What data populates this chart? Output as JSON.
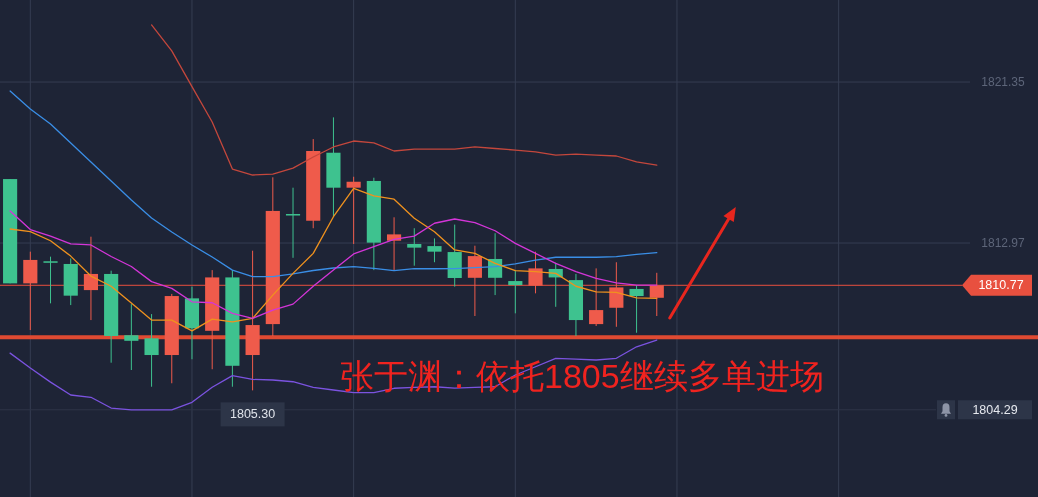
{
  "chart_data": {
    "type": "candlestick",
    "categories": [
      null,
      null,
      null,
      null,
      null,
      null,
      null,
      null,
      null,
      null,
      null,
      null,
      null,
      null,
      null,
      null,
      null,
      null,
      null,
      null,
      null,
      null,
      null,
      null,
      null,
      null,
      null,
      null,
      null,
      null,
      null,
      null,
      null
    ],
    "ohlc": [
      [
        1816.3,
        1816.3,
        1810.87,
        1810.87
      ],
      [
        1810.87,
        1812.52,
        1808.44,
        1812.09
      ],
      [
        1812.02,
        1812.26,
        1809.83,
        1811.98
      ],
      [
        1811.88,
        1812.17,
        1809.74,
        1810.23
      ],
      [
        1810.52,
        1813.3,
        1808.96,
        1811.36
      ],
      [
        1811.36,
        1811.53,
        1806.74,
        1808.13
      ],
      [
        1808.17,
        1809.79,
        1806.36,
        1807.88
      ],
      [
        1808.01,
        1809.27,
        1805.49,
        1807.14
      ],
      [
        1807.14,
        1810.32,
        1805.67,
        1810.21
      ],
      [
        1810.09,
        1810.7,
        1806.92,
        1808.53
      ],
      [
        1808.4,
        1811.56,
        1806.4,
        1811.18
      ],
      [
        1811.18,
        1811.56,
        1805.49,
        1806.58
      ],
      [
        1807.14,
        1812.57,
        1805.3,
        1808.7
      ],
      [
        1808.75,
        1816.39,
        1808.13,
        1814.64
      ],
      [
        1814.48,
        1815.85,
        1812.2,
        1814.44
      ],
      [
        1814.13,
        1818.38,
        1813.74,
        1817.76
      ],
      [
        1817.67,
        1819.51,
        1814.34,
        1815.85
      ],
      [
        1815.85,
        1816.42,
        1812.92,
        1816.16
      ],
      [
        1816.2,
        1816.37,
        1811.56,
        1812.99
      ],
      [
        1813.09,
        1814.31,
        1811.56,
        1813.42
      ],
      [
        1812.92,
        1813.74,
        1811.79,
        1812.73
      ],
      [
        1812.81,
        1813.21,
        1811.97,
        1812.52
      ],
      [
        1812.5,
        1813.93,
        1810.7,
        1811.15
      ],
      [
        1811.16,
        1812.83,
        1809.17,
        1812.29
      ],
      [
        1812.14,
        1813.48,
        1810.26,
        1811.16
      ],
      [
        1810.99,
        1811.56,
        1809.31,
        1810.78
      ],
      [
        1810.75,
        1812.52,
        1810.35,
        1811.65
      ],
      [
        1811.62,
        1811.94,
        1809.65,
        1811.18
      ],
      [
        1811.04,
        1811.36,
        1808.13,
        1808.96
      ],
      [
        1808.75,
        1811.65,
        1808.65,
        1809.48
      ],
      [
        1809.6,
        1811.97,
        1808.61,
        1810.66
      ],
      [
        1810.58,
        1810.78,
        1808.3,
        1810.21
      ],
      [
        1810.12,
        1811.42,
        1809.17,
        1810.77
      ]
    ],
    "colors": [
      "#3ec28f",
      "#ef5b4b",
      "#3ec28f",
      "#3ec28f",
      "#ef5b4b",
      "#3ec28f",
      "#3ec28f",
      "#3ec28f",
      "#ef5b4b",
      "#3ec28f",
      "#ef5b4b",
      "#3ec28f",
      "#ef5b4b",
      "#ef5b4b",
      "#3ec28f",
      "#ef5b4b",
      "#3ec28f",
      "#ef5b4b",
      "#3ec28f",
      "#ef5b4b",
      "#3ec28f",
      "#3ec28f",
      "#3ec28f",
      "#ef5b4b",
      "#3ec28f",
      "#3ec28f",
      "#ef5b4b",
      "#3ec28f",
      "#3ec28f",
      "#ef5b4b",
      "#ef5b4b",
      "#3ec28f",
      "#ef5b4b"
    ],
    "series": [
      {
        "type": "line",
        "color": "#c4473c",
        "values": [
          null,
          null,
          null,
          null,
          null,
          null,
          null,
          1824.32,
          1822.97,
          1821.11,
          1819.27,
          1816.82,
          1816.51,
          1816.56,
          1816.87,
          1817.45,
          1817.97,
          1818.28,
          1818.18,
          1817.76,
          1817.86,
          1817.86,
          1817.86,
          1817.97,
          1817.89,
          1817.81,
          1817.71,
          1817.55,
          1817.6,
          1817.55,
          1817.5,
          1817.19,
          1817.03
        ]
      },
      {
        "type": "line",
        "color": "#3a8ee6",
        "values": [
          1820.88,
          1819.95,
          1819.17,
          1818.18,
          1817.19,
          1816.2,
          1815.21,
          1814.27,
          1813.54,
          1812.87,
          1812.24,
          1811.56,
          1811.22,
          1811.22,
          1811.36,
          1811.54,
          1811.67,
          1811.74,
          1811.65,
          1811.53,
          1811.64,
          1811.63,
          1811.64,
          1811.69,
          1811.74,
          1811.88,
          1812.08,
          1812.23,
          1812.23,
          1812.23,
          1812.26,
          1812.38,
          1812.47
        ]
      },
      {
        "type": "line",
        "color": "#7b53e0",
        "values": [
          1807.24,
          1806.46,
          1805.73,
          1805.06,
          1804.94,
          1804.38,
          1804.28,
          1804.28,
          1804.28,
          1804.68,
          1805.46,
          1806.07,
          1805.87,
          1805.84,
          1805.75,
          1805.46,
          1805.32,
          1805.18,
          1805.18,
          1805.41,
          1805.46,
          1805.49,
          1805.42,
          1805.46,
          1805.49,
          1806.1,
          1806.53,
          1806.97,
          1806.93,
          1806.88,
          1806.97,
          1807.57,
          1807.92
        ]
      },
      {
        "type": "line",
        "color": "#f0921e",
        "values": [
          1813.7,
          1813.56,
          1813.09,
          1812.29,
          1811.25,
          1810.72,
          1809.85,
          1808.96,
          1808.96,
          1808.4,
          1809.01,
          1808.86,
          1809.05,
          1810.26,
          1811.39,
          1812.43,
          1814.34,
          1815.82,
          1815.42,
          1815.25,
          1814.26,
          1813.56,
          1812.61,
          1812.43,
          1811.91,
          1811.53,
          1811.48,
          1811.39,
          1810.72,
          1810.43,
          1810.4,
          1810.12,
          1810.09
        ]
      },
      {
        "type": "line",
        "color": "#d435d8",
        "values": [
          1814.64,
          1813.67,
          1813.33,
          1812.93,
          1812.87,
          1812.27,
          1811.75,
          1810.96,
          1810.61,
          1809.91,
          1809.86,
          1809.31,
          1809.05,
          1809.48,
          1809.79,
          1810.72,
          1811.56,
          1812.4,
          1812.78,
          1813.16,
          1813.33,
          1814.0,
          1814.22,
          1814.03,
          1813.61,
          1812.95,
          1812.43,
          1811.91,
          1811.48,
          1811.13,
          1810.9,
          1810.78,
          1810.78
        ]
      }
    ],
    "ylim": [
      1799.75,
      1825.62
    ],
    "yticks": [
      1821.35,
      1812.97
    ],
    "ref_lines": [
      {
        "axis": "y",
        "value": 1810.77,
        "label": "1810.77",
        "color": "#e8503f"
      },
      {
        "axis": "y",
        "value": 1804.29,
        "label": "1804.29",
        "color": "#2d3548"
      },
      {
        "axis": "y",
        "value": 1808.06,
        "color": "#e04a32"
      }
    ],
    "annotations": [
      "张于渊：依托1805继续多单进场",
      {
        "text": "1805.30",
        "y": 1805.3
      }
    ],
    "grid": true,
    "tick_labels": "y"
  }
}
